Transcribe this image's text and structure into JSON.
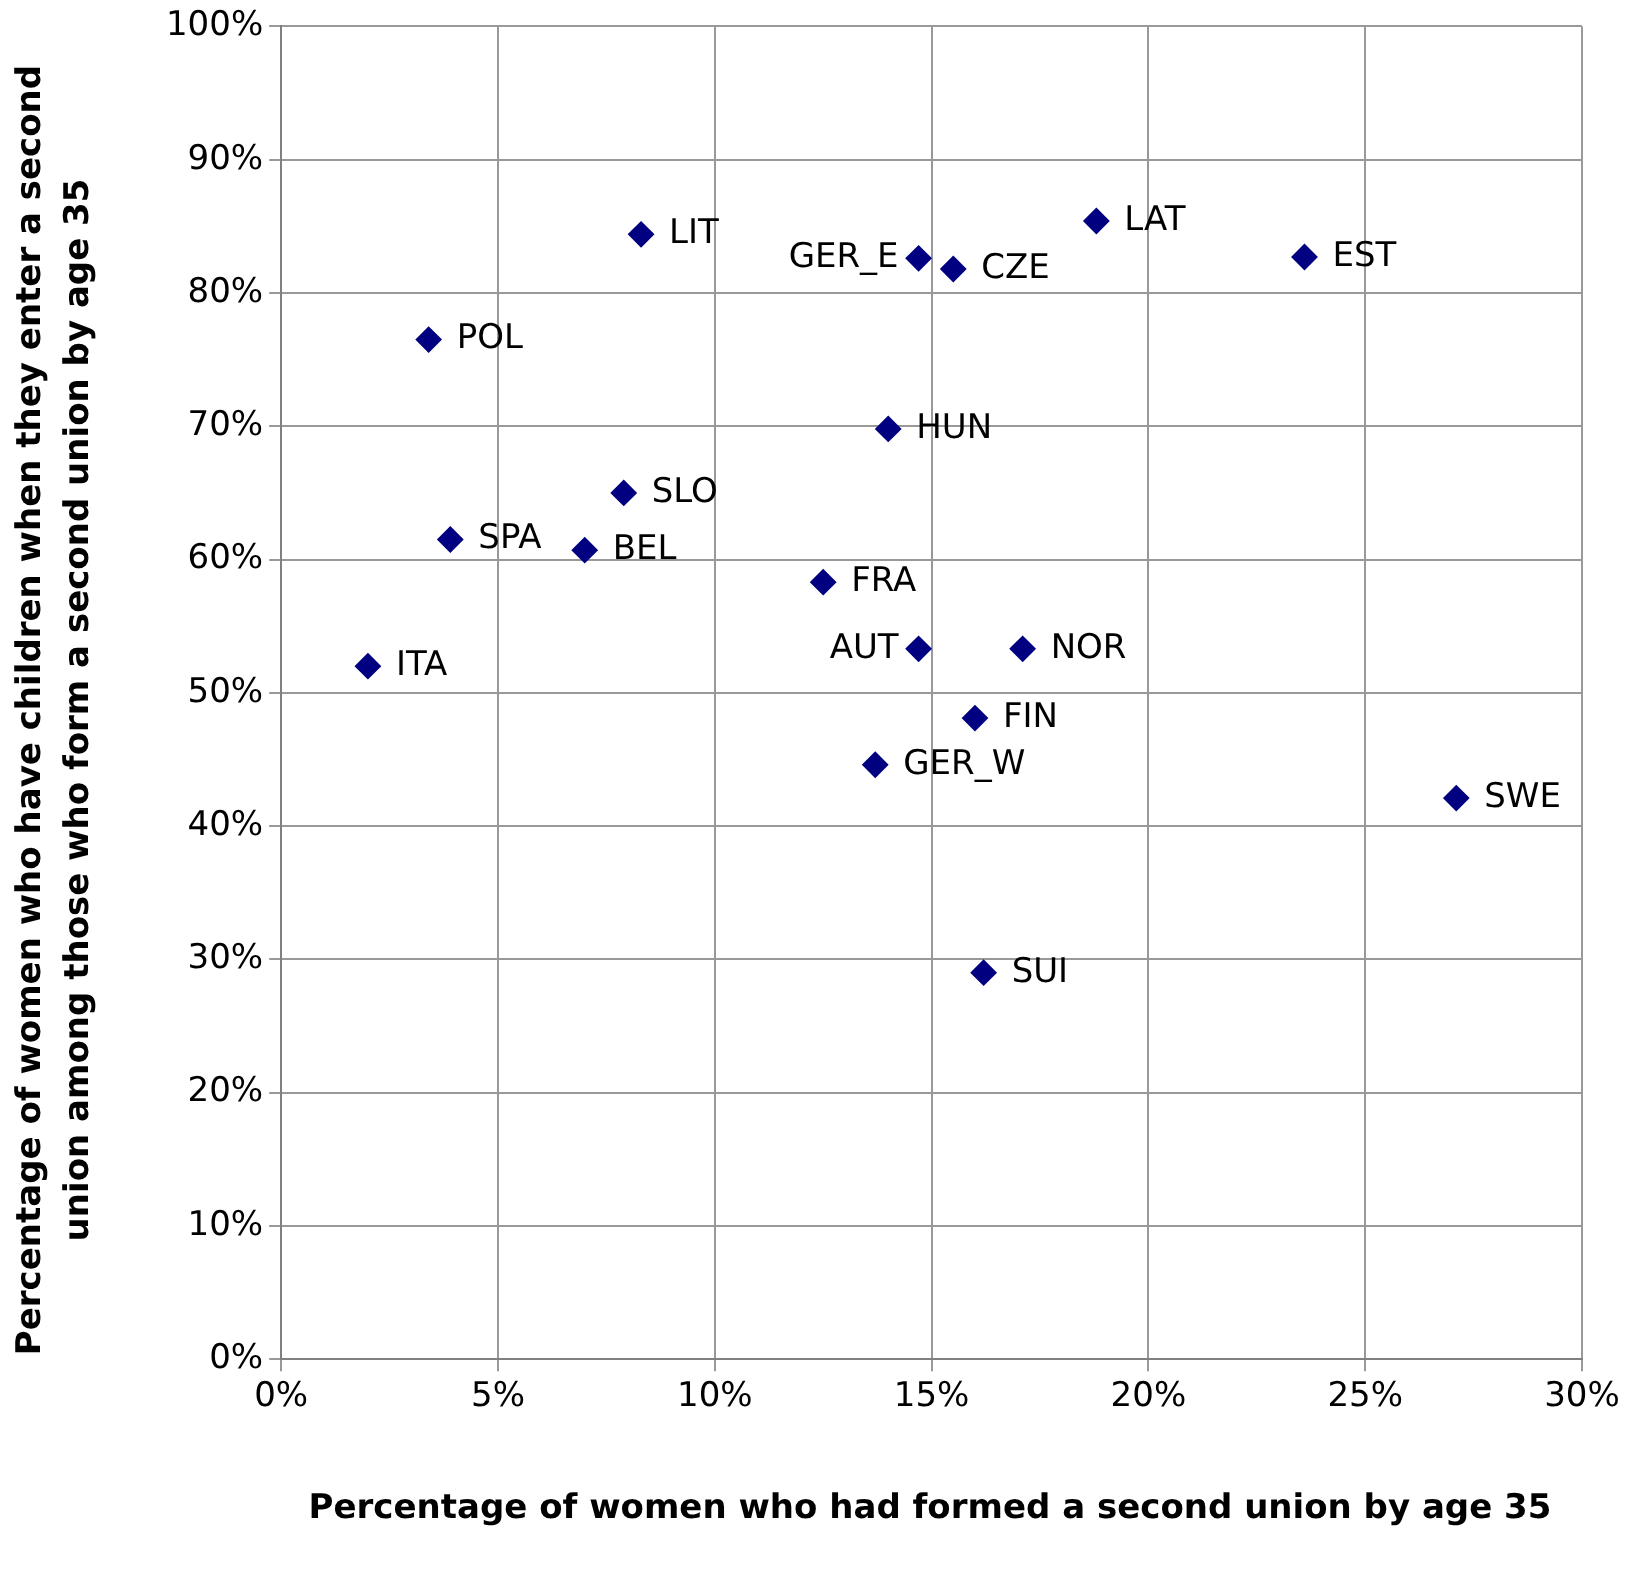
{
  "chart_data": {
    "type": "scatter",
    "xlabel": "Percentage of women who had formed a second union by age 35",
    "ylabel": "Percentage of women who have children when they enter a second union among those who form a second union by age 35",
    "x": [
      2.0,
      3.4,
      3.9,
      7.0,
      7.9,
      8.3,
      12.5,
      13.7,
      14.0,
      14.7,
      14.7,
      15.5,
      16.0,
      16.2,
      17.1,
      18.8,
      23.6,
      27.1
    ],
    "series": [
      {
        "color": "#000080",
        "values": [
          52,
          76.5,
          61.5,
          60.7,
          65,
          84.4,
          58.3,
          44.6,
          69.8,
          53.3,
          82.6,
          81.8,
          48.1,
          29,
          53.3,
          85.4,
          82.7,
          42.1
        ]
      }
    ],
    "annotations": [
      {
        "text": "ITA",
        "x": 2.0,
        "y": 52
      },
      {
        "text": "POL",
        "x": 3.4,
        "y": 76.5
      },
      {
        "text": "SPA",
        "x": 3.9,
        "y": 61.5
      },
      {
        "text": "BEL",
        "x": 7.0,
        "y": 60.7
      },
      {
        "text": "SLO",
        "x": 7.9,
        "y": 65
      },
      {
        "text": "LIT",
        "x": 8.3,
        "y": 84.4
      },
      {
        "text": "FRA",
        "x": 12.5,
        "y": 58.3
      },
      {
        "text": "GER_W",
        "x": 13.7,
        "y": 44.6
      },
      {
        "text": "HUN",
        "x": 14.0,
        "y": 69.8
      },
      {
        "text": "AUT",
        "x": 14.7,
        "y": 53.3
      },
      {
        "text": "GER_E",
        "x": 14.7,
        "y": 82.6
      },
      {
        "text": "CZE",
        "x": 15.5,
        "y": 81.8
      },
      {
        "text": "FIN",
        "x": 16.0,
        "y": 48.1
      },
      {
        "text": "SUI",
        "x": 16.2,
        "y": 29
      },
      {
        "text": "NOR",
        "x": 17.1,
        "y": 53.3
      },
      {
        "text": "LAT",
        "x": 18.8,
        "y": 85.4
      },
      {
        "text": "EST",
        "x": 23.6,
        "y": 82.7
      },
      {
        "text": "SWE",
        "x": 27.1,
        "y": 42.1
      }
    ],
    "xlim": [
      0,
      30
    ],
    "xticks": [
      {
        "value": 0,
        "label": "0%"
      },
      {
        "value": 5,
        "label": "5%"
      },
      {
        "value": 10,
        "label": "10%"
      },
      {
        "value": 15,
        "label": "15%"
      },
      {
        "value": 20,
        "label": "20%"
      },
      {
        "value": 25,
        "label": "25%"
      },
      {
        "value": 30,
        "label": "30%"
      }
    ],
    "ylim": [
      0,
      100
    ],
    "yticks": [
      {
        "value": 0,
        "label": "0%"
      },
      {
        "value": 10,
        "label": "10%"
      },
      {
        "value": 20,
        "label": "20%"
      },
      {
        "value": 30,
        "label": "30%"
      },
      {
        "value": 40,
        "label": "40%"
      },
      {
        "value": 50,
        "label": "50%"
      },
      {
        "value": 60,
        "label": "60%"
      },
      {
        "value": 70,
        "label": "70%"
      },
      {
        "value": 80,
        "label": "80%"
      },
      {
        "value": 90,
        "label": "90%"
      },
      {
        "value": 100,
        "label": "100%"
      }
    ],
    "grid": true,
    "marker": "diamond",
    "legend": false
  }
}
